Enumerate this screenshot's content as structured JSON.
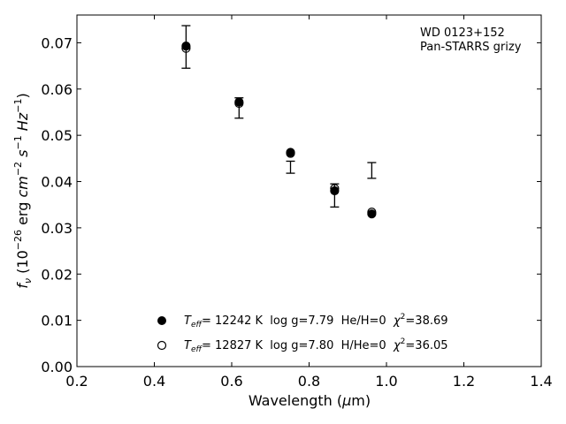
{
  "chart_data": {
    "type": "scatter",
    "xlabel": "Wavelength (μm)",
    "ylabel": "f_ν (10^-26 erg cm^-2 s^-1 Hz^-1)",
    "xlim": [
      0.2,
      1.4
    ],
    "ylim": [
      0.0,
      0.076
    ],
    "x_ticks": [
      "0.2",
      "0.4",
      "0.6",
      "0.8",
      "1.0",
      "1.2",
      "1.4"
    ],
    "y_ticks": [
      "0.00",
      "0.01",
      "0.02",
      "0.03",
      "0.04",
      "0.05",
      "0.06",
      "0.07"
    ],
    "grid": false,
    "annotation": [
      "WD 0123+152",
      "Pan-STARRS grizy"
    ],
    "observed": {
      "x": [
        0.482,
        0.619,
        0.752,
        0.866,
        0.962
      ],
      "y": [
        0.0691,
        0.0559,
        0.0431,
        0.037,
        0.0424
      ],
      "yerr": [
        0.0046,
        0.0022,
        0.0013,
        0.0025,
        0.0017
      ]
    },
    "series": [
      {
        "name": "T_eff= 12242 K  log g=7.79  He/H=0  χ²=38.69",
        "marker": "filled-circle",
        "x": [
          0.482,
          0.619,
          0.752,
          0.866,
          0.962
        ],
        "y": [
          0.0693,
          0.0572,
          0.0463,
          0.038,
          0.033
        ]
      },
      {
        "name": "T_eff= 12827 K  log g=7.80  H/He=0  χ²=36.05",
        "marker": "open-circle",
        "x": [
          0.482,
          0.619,
          0.752,
          0.866,
          0.962
        ],
        "y": [
          0.0688,
          0.0569,
          0.0461,
          0.0385,
          0.0334
        ]
      }
    ],
    "legend": {
      "placement": "bottom-center",
      "entries": [
        {
          "t": "T",
          "sub": "eff",
          "rest": "= 12242 K  log g=7.79  He/H=0  ",
          "chi": "χ",
          "sup": "2",
          "val": "=38.69"
        },
        {
          "t": "T",
          "sub": "eff",
          "rest": "= 12827 K  log g=7.80  H/He=0  ",
          "chi": "χ",
          "sup": "2",
          "val": "=36.05"
        }
      ]
    }
  }
}
